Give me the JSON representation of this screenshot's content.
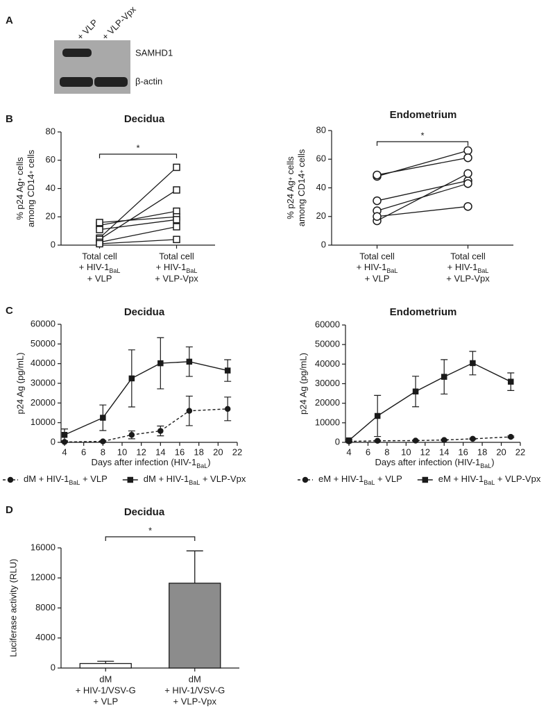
{
  "panel_labels": [
    "A",
    "B",
    "C",
    "D"
  ],
  "blot": {
    "lanes": [
      "+ VLP",
      "+ VLP-Vpx"
    ],
    "bands": [
      "SAMHD1",
      "β-actin"
    ]
  },
  "chart_data": [
    {
      "type": "paired",
      "title": "Decidua",
      "marker": "square",
      "significance": "*",
      "y_label": [
        [
          "% p24 Ag",
          {
            "sup": "+"
          },
          " cells"
        ],
        [
          "among CD14",
          {
            "sup": "+"
          },
          " cells"
        ]
      ],
      "categories": [
        [
          "Total cell",
          [
            "+ HIV-1",
            {
              "sub": "BaL"
            }
          ],
          "+ VLP"
        ],
        [
          "Total cell",
          [
            "+ HIV-1",
            {
              "sub": "BaL"
            }
          ],
          "+ VLP-Vpx"
        ]
      ],
      "ylim": [
        0,
        80
      ],
      "yticks": [
        0,
        20,
        40,
        60,
        80
      ],
      "series": [
        {
          "values": [
            5,
            55
          ]
        },
        {
          "values": [
            4,
            39
          ]
        },
        {
          "values": [
            14,
            24
          ]
        },
        {
          "values": [
            16,
            20
          ]
        },
        {
          "values": [
            11,
            18
          ]
        },
        {
          "values": [
            2,
            13
          ]
        },
        {
          "values": [
            1,
            4
          ]
        }
      ]
    },
    {
      "type": "paired",
      "title": "Endometrium",
      "marker": "circle",
      "significance": "*",
      "y_label": [
        [
          "% p24 Ag",
          {
            "sup": "+"
          },
          " cells"
        ],
        [
          "among CD14",
          {
            "sup": "+"
          },
          " cells"
        ]
      ],
      "categories": [
        [
          "Total cell",
          [
            "+ HIV-1",
            {
              "sub": "BaL"
            }
          ],
          "+ VLP"
        ],
        [
          "Total cell",
          [
            "+ HIV-1",
            {
              "sub": "BaL"
            }
          ],
          "+ VLP-Vpx"
        ]
      ],
      "ylim": [
        0,
        80
      ],
      "yticks": [
        0,
        20,
        40,
        60,
        80
      ],
      "series": [
        {
          "values": [
            48,
            66
          ]
        },
        {
          "values": [
            49,
            61
          ]
        },
        {
          "values": [
            31,
            45
          ]
        },
        {
          "values": [
            17,
            50
          ]
        },
        {
          "values": [
            24,
            43
          ]
        },
        {
          "values": [
            20,
            27
          ]
        }
      ]
    },
    {
      "type": "line",
      "title": "Decidua",
      "y_label": [
        "p24 Ag (pg/mL)"
      ],
      "x_label": [
        [
          "Days after infection (HIV-1",
          {
            "sub": "BaL"
          },
          ")"
        ]
      ],
      "xlim": [
        4,
        22
      ],
      "xticks": [
        4,
        6,
        8,
        10,
        12,
        14,
        16,
        18,
        20,
        22
      ],
      "ylim": [
        0,
        60000
      ],
      "yticks": [
        0,
        10000,
        20000,
        30000,
        40000,
        50000,
        60000
      ],
      "series": [
        {
          "name": [
            "dM + HIV-1",
            {
              "sub": "BaL"
            },
            " + VLP"
          ],
          "color": "#1a1a1a",
          "marker": "circle",
          "line_style": "dashed",
          "x": [
            4,
            8,
            11,
            14,
            17,
            21
          ],
          "values": [
            200,
            500,
            3800,
            5800,
            16000,
            17000
          ],
          "errors": [
            300,
            300,
            2000,
            2500,
            7500,
            6000
          ]
        },
        {
          "name": [
            "dM + HIV-1",
            {
              "sub": "BaL"
            },
            " + VLP-Vpx"
          ],
          "color": "#1a1a1a",
          "marker": "square",
          "line_style": "solid",
          "x": [
            4,
            8,
            11,
            14,
            17,
            21
          ],
          "values": [
            3800,
            12500,
            32500,
            40200,
            41000,
            36500
          ],
          "errors": [
            3000,
            6500,
            14500,
            13000,
            7500,
            5500
          ]
        }
      ]
    },
    {
      "type": "line",
      "title": "Endometrium",
      "y_label": [
        "p24 Ag (pg/mL)"
      ],
      "x_label": [
        [
          "Days after infection (HIV-1",
          {
            "sub": "BaL"
          },
          ")"
        ]
      ],
      "xlim": [
        4,
        22
      ],
      "xticks": [
        4,
        6,
        8,
        10,
        12,
        14,
        16,
        18,
        20,
        22
      ],
      "ylim": [
        0,
        60000
      ],
      "yticks": [
        0,
        10000,
        20000,
        30000,
        40000,
        50000,
        60000
      ],
      "series": [
        {
          "name": [
            "eM + HIV-1",
            {
              "sub": "BaL"
            },
            " + VLP"
          ],
          "color": "#1a1a1a",
          "marker": "circle",
          "line_style": "dashed",
          "x": [
            4,
            7,
            11,
            14,
            17,
            21
          ],
          "values": [
            500,
            800,
            900,
            1200,
            1800,
            2800
          ],
          "errors": [
            200,
            200,
            200,
            300,
            300,
            400
          ]
        },
        {
          "name": [
            "eM + HIV-1",
            {
              "sub": "BaL"
            },
            " + VLP-Vpx"
          ],
          "color": "#1a1a1a",
          "marker": "square",
          "line_style": "solid",
          "x": [
            4,
            7,
            11,
            14,
            17,
            21
          ],
          "values": [
            1000,
            13500,
            26000,
            33500,
            40500,
            31000
          ],
          "errors": [
            500,
            10500,
            7800,
            8800,
            6000,
            4500
          ]
        }
      ]
    },
    {
      "type": "bar",
      "title": "Decidua",
      "significance": "*",
      "y_label": [
        "Luciferase activity (RLU)"
      ],
      "categories": [
        [
          "dM",
          "+ HIV-1/VSV-G",
          "+ VLP"
        ],
        [
          "dM",
          "+ HIV-1/VSV-G",
          "+ VLP-Vpx"
        ]
      ],
      "values": [
        600,
        11300
      ],
      "errors": [
        300,
        4300
      ],
      "colors": [
        "#ffffff",
        "#8c8c8c"
      ],
      "ylim": [
        0,
        16000
      ],
      "yticks": [
        0,
        4000,
        8000,
        12000,
        16000
      ]
    }
  ]
}
